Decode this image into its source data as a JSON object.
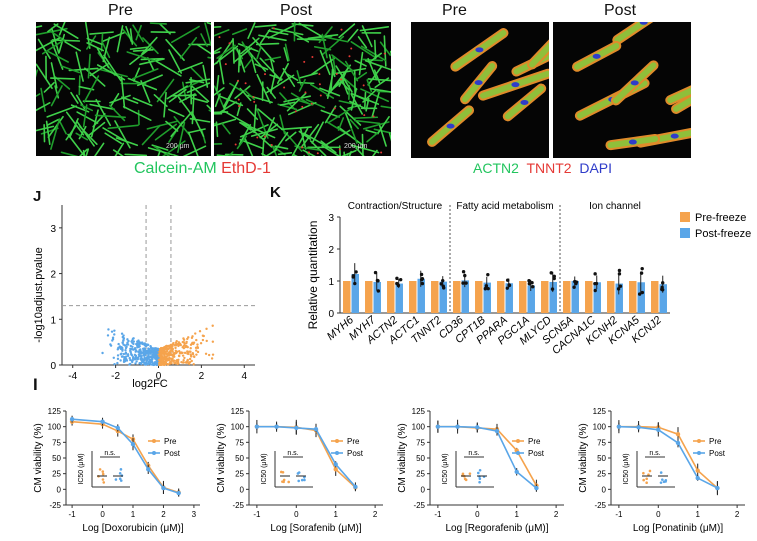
{
  "top_left": {
    "labels": [
      "Pre",
      "Post"
    ],
    "scale_bar": "200 μm",
    "stain_green": "Calcein-AM",
    "stain_red": "EthD-1"
  },
  "top_right": {
    "labels": [
      "Pre",
      "Post"
    ],
    "stain_green": "ACTN2",
    "stain_red": "TNNT2",
    "stain_blue": "DAPI"
  },
  "panel_letters": {
    "volcano": "J",
    "bars": "K",
    "curves": "I"
  },
  "colors": {
    "pre": "#f5a34d",
    "post": "#5aa6e8",
    "green": "#22c55e",
    "red": "#e53935",
    "blue": "#2f3cc9"
  },
  "chart_data": [
    {
      "type": "scatter",
      "title": "",
      "xlabel": "log2FC",
      "ylabel": "-log10adjust.pvalue",
      "xlim": [
        -4.5,
        4.5
      ],
      "ylim": [
        0,
        3.5
      ],
      "xticks": [
        "-4",
        "-2",
        "0",
        "2",
        "4"
      ],
      "yticks": [
        "0",
        "1",
        "2",
        "3"
      ],
      "threshold_y": 1.3,
      "threshold_x": [
        -0.58,
        0.58
      ]
    },
    {
      "type": "bar",
      "ylabel": "Relative quantitation",
      "ylim": [
        0,
        3
      ],
      "yticks": [
        "0",
        "1",
        "2",
        "3"
      ],
      "groups": [
        "Contraction/Structure",
        "Fatty acid metabolism",
        "Ion channel"
      ],
      "categories": [
        "MYH6",
        "MYH7",
        "ACTN2",
        "ACTC1",
        "TNNT2",
        "CD36",
        "CPT1B",
        "PPARA",
        "PGC1A",
        "MLYCD",
        "SCN5A",
        "CACNA1C",
        "KCNH2",
        "KCNA5",
        "KCNJ2"
      ],
      "series": [
        {
          "name": "Pre-freeze",
          "values": [
            1,
            1,
            1,
            1,
            1,
            1,
            1,
            1,
            1,
            1,
            1,
            1,
            1,
            1,
            1
          ]
        },
        {
          "name": "Post-freeze",
          "values": [
            1.22,
            0.97,
            0.92,
            1.07,
            0.98,
            1.02,
            0.95,
            0.93,
            0.86,
            0.97,
            1.0,
            0.96,
            0.92,
            0.96,
            0.9
          ]
        }
      ]
    },
    {
      "type": "line",
      "xlabel": "Log [Doxorubicin (μM)]",
      "ylabel": "CM viability (%)",
      "xticks": [
        "-1",
        "0",
        "1",
        "2",
        "3"
      ],
      "yticks": [
        "-25",
        "0",
        "25",
        "50",
        "75",
        "100",
        "125"
      ],
      "legend": [
        "Pre",
        "Post"
      ],
      "inset": {
        "ylabel": "IC50 (μM)",
        "sig": "n.s."
      },
      "series": [
        {
          "name": "Pre",
          "x": [
            -1,
            0,
            0.5,
            1,
            1.5,
            2,
            2.5
          ],
          "y": [
            108,
            104,
            93,
            80,
            38,
            3,
            -5
          ]
        },
        {
          "name": "Post",
          "x": [
            -1,
            0,
            0.5,
            1,
            1.5,
            2,
            2.5
          ],
          "y": [
            112,
            108,
            98,
            72,
            32,
            2,
            -6
          ]
        }
      ]
    },
    {
      "type": "line",
      "xlabel": "Log [Sorafenib (μM)]",
      "ylabel": "CM viability (%)",
      "xticks": [
        "-1",
        "0",
        "1",
        "2"
      ],
      "yticks": [
        "-25",
        "0",
        "25",
        "50",
        "75",
        "100",
        "125"
      ],
      "legend": [
        "Pre",
        "Post"
      ],
      "inset": {
        "ylabel": "IC50 (μM)",
        "sig": "n.s."
      },
      "series": [
        {
          "name": "Pre",
          "x": [
            -1,
            -0.5,
            0,
            0.5,
            1,
            1.5
          ],
          "y": [
            100,
            100,
            99,
            94,
            32,
            3
          ]
        },
        {
          "name": "Post",
          "x": [
            -1,
            -0.5,
            0,
            0.5,
            1,
            1.5
          ],
          "y": [
            100,
            100,
            98,
            96,
            40,
            4
          ]
        }
      ]
    },
    {
      "type": "line",
      "xlabel": "Log [Regorafenib (μM)]",
      "ylabel": "CM viability (%)",
      "xticks": [
        "-1",
        "0",
        "1",
        "2"
      ],
      "yticks": [
        "-25",
        "0",
        "25",
        "50",
        "75",
        "100",
        "125"
      ],
      "legend": [
        "Pre",
        "Post"
      ],
      "inset": {
        "ylabel": "IC50 (μM)",
        "sig": "n.s."
      },
      "series": [
        {
          "name": "Pre",
          "x": [
            -1,
            -0.5,
            0,
            0.5,
            1,
            1.5
          ],
          "y": [
            100,
            100,
            98,
            96,
            62,
            6
          ]
        },
        {
          "name": "Post",
          "x": [
            -1,
            -0.5,
            0,
            0.5,
            1,
            1.5
          ],
          "y": [
            100,
            100,
            99,
            93,
            28,
            2
          ]
        }
      ]
    },
    {
      "type": "line",
      "xlabel": "Log [Ponatinib (μM)]",
      "ylabel": "CM viability (%)",
      "xticks": [
        "-1",
        "0",
        "1",
        "2"
      ],
      "yticks": [
        "-25",
        "0",
        "25",
        "50",
        "75",
        "100",
        "125"
      ],
      "legend": [
        "Pre",
        "Post"
      ],
      "inset": {
        "ylabel": "IC50 (μM)",
        "sig": "n.s."
      },
      "series": [
        {
          "name": "Pre",
          "x": [
            -1,
            -0.5,
            0,
            0.5,
            1,
            1.5
          ],
          "y": [
            100,
            100,
            99,
            88,
            30,
            2
          ]
        },
        {
          "name": "Post",
          "x": [
            -1,
            -0.5,
            0,
            0.5,
            1,
            1.5
          ],
          "y": [
            100,
            99,
            95,
            74,
            18,
            2
          ]
        }
      ]
    }
  ]
}
